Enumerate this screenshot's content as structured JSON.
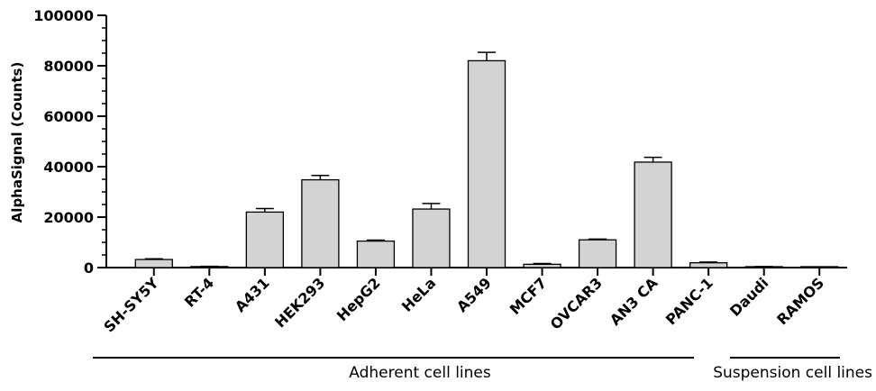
{
  "chart_data": {
    "type": "bar",
    "ylabel": "AlphaSignal (Counts)",
    "xlabel": "",
    "ylim": [
      0,
      100000
    ],
    "yticks": [
      0,
      20000,
      40000,
      60000,
      80000,
      100000
    ],
    "y_minor_step": 5000,
    "grid": false,
    "legend": "none",
    "categories": [
      "SH-SY5Y",
      "RT-4",
      "A431",
      "HEK293",
      "HepG2",
      "HeLa",
      "A549",
      "MCF7",
      "OVCAR3",
      "AN3 CA",
      "PANC-1",
      "Daudi",
      "RAMOS"
    ],
    "values": [
      3200,
      400,
      22000,
      34800,
      10500,
      23200,
      82000,
      1300,
      11000,
      41800,
      1900,
      300,
      200
    ],
    "error": [
      300,
      100,
      1400,
      1700,
      400,
      2200,
      3300,
      300,
      300,
      1900,
      300,
      100,
      50
    ],
    "bar_colors": [
      "#d3d3d3",
      "#d3d3d3",
      "#d3d3d3",
      "#d3d3d3",
      "#d3d3d3",
      "#d3d3d3",
      "#d3d3d3",
      "#d3d3d3",
      "#d3d3d3",
      "#d3d3d3",
      "#d3d3d3",
      "#d3d3d3",
      "#d3d3d3"
    ],
    "groups": [
      {
        "label": "Adherent cell lines",
        "from": 0,
        "to": 10
      },
      {
        "label": "Suspension cell lines",
        "from": 11,
        "to": 12
      }
    ]
  }
}
